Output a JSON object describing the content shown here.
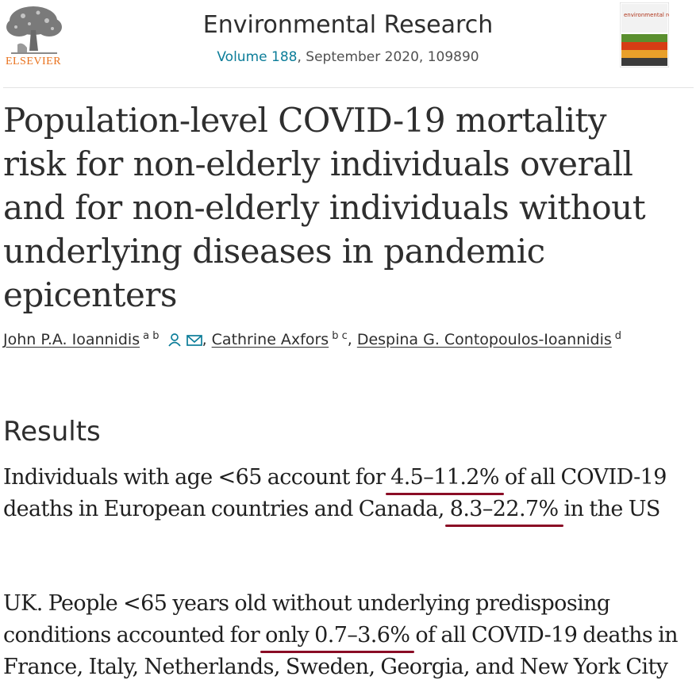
{
  "header": {
    "publisher": "ELSEVIER",
    "journal": "Environmental Research",
    "volume_link": "Volume 188",
    "citation_rest": ", September 2020, 109890",
    "cover_title": "environmental research"
  },
  "article": {
    "title_lines": [
      "Population-level COVID-19 mortality",
      "risk for non-elderly individuals overall",
      "and for non-elderly individuals without",
      "underlying diseases in pandemic",
      "epicenters"
    ]
  },
  "authors": [
    {
      "name": "John P.A. Ioannidis",
      "affiliations": "a b"
    },
    {
      "name": "Cathrine Axfors",
      "affiliations": "b c"
    },
    {
      "name": "Despina G. Contopoulos-Ioannidis",
      "affiliations": "d"
    }
  ],
  "results": {
    "heading": "Results",
    "para1_lines": [
      [
        "Individuals with age <65 account for ",
        "4.5–11.2%",
        " of all COVID-19"
      ],
      [
        "deaths in European countries and Canada, ",
        "8.3–22.7%",
        " in the US"
      ]
    ],
    "para2_lines": [
      "UK. People <65 years old without underlying predisposing",
      [
        "conditions accounted for ",
        "only 0.7–3.6%",
        " of all COVID-19 deaths in"
      ],
      "France, Italy, Netherlands, Sweden, Georgia, and New York City"
    ]
  },
  "colors": {
    "link": "#0c7d99",
    "highlight_underline": "#8a0c25",
    "publisher_orange": "#e9711c"
  },
  "icons": {
    "author_person": "person-icon",
    "author_mail": "mail-icon"
  }
}
